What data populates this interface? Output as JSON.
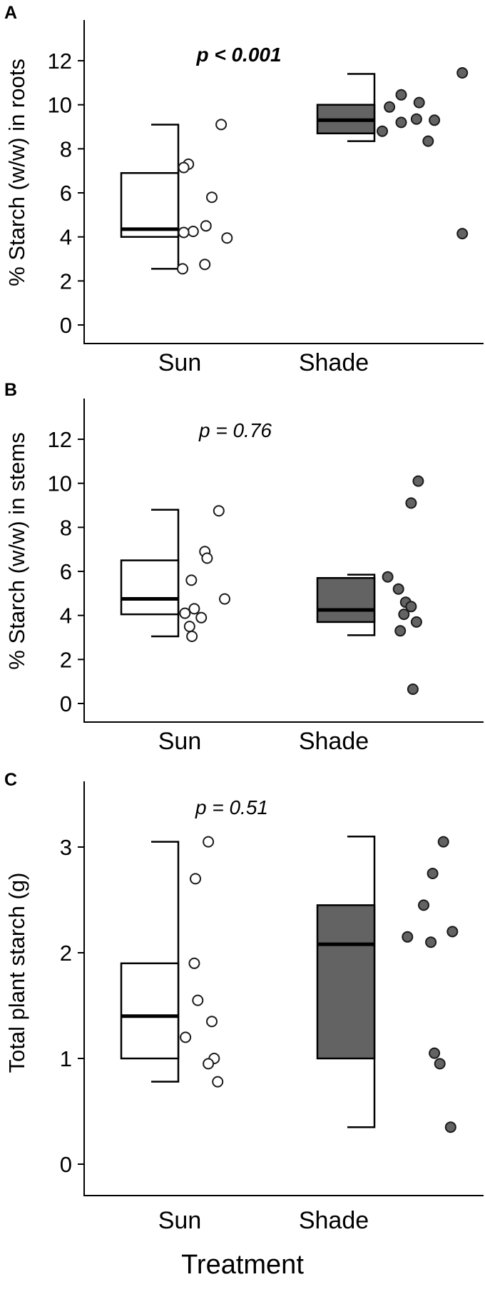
{
  "figure": {
    "xlabel": "Treatment",
    "colors": {
      "sun_fill": "#ffffff",
      "shade_fill": "#636363",
      "stroke": "#000000",
      "point_stroke": "#1a1a1a"
    }
  },
  "chart_data": [
    {
      "type": "boxplot",
      "panel_label": "A",
      "annotation": "p < 0.001",
      "annotation_weight": "bold",
      "ylabel": "% Starch (w/w) in roots",
      "xlabel": "",
      "categories": [
        "Sun",
        "Shade"
      ],
      "yticks": [
        0,
        2,
        4,
        6,
        8,
        10,
        12
      ],
      "ylim": [
        -0.8,
        13.9
      ],
      "legend": "none",
      "grid": false,
      "series": [
        {
          "name": "Sun",
          "style": "open",
          "box": {
            "whisker_low": 2.55,
            "q1": 4.0,
            "median": 4.35,
            "q3": 6.9,
            "whisker_high": 9.1
          },
          "points": [
            [
              9.1,
              0.66
            ],
            [
              7.3,
              0.1
            ],
            [
              7.15,
              0.02
            ],
            [
              5.8,
              0.5
            ],
            [
              4.5,
              0.4
            ],
            [
              4.25,
              0.18
            ],
            [
              4.2,
              0.02
            ],
            [
              3.95,
              0.76
            ],
            [
              2.75,
              0.38
            ],
            [
              2.55,
              0.0
            ]
          ]
        },
        {
          "name": "Shade",
          "style": "filled",
          "box": {
            "whisker_low": 8.35,
            "q1": 8.7,
            "median": 9.3,
            "q3": 10.0,
            "whisker_high": 11.4
          },
          "points": [
            [
              11.45,
              0.93
            ],
            [
              10.45,
              0.25
            ],
            [
              10.1,
              0.45
            ],
            [
              9.9,
              0.12
            ],
            [
              9.35,
              0.42
            ],
            [
              9.3,
              0.62
            ],
            [
              9.2,
              0.25
            ],
            [
              8.8,
              0.04
            ],
            [
              8.35,
              0.55
            ],
            [
              4.15,
              0.93
            ]
          ]
        }
      ]
    },
    {
      "type": "boxplot",
      "panel_label": "B",
      "annotation": "p = 0.76",
      "annotation_weight": "normal",
      "ylabel": "% Starch (w/w) in stems",
      "xlabel": "",
      "categories": [
        "Sun",
        "Shade"
      ],
      "yticks": [
        0,
        2,
        4,
        6,
        8,
        10,
        12
      ],
      "ylim": [
        -0.8,
        13.9
      ],
      "legend": "none",
      "grid": false,
      "series": [
        {
          "name": "Sun",
          "style": "open",
          "box": {
            "whisker_low": 3.05,
            "q1": 4.05,
            "median": 4.75,
            "q3": 6.5,
            "whisker_high": 8.8
          },
          "points": [
            [
              8.75,
              0.62
            ],
            [
              6.9,
              0.38
            ],
            [
              6.6,
              0.42
            ],
            [
              5.6,
              0.15
            ],
            [
              4.75,
              0.72
            ],
            [
              4.3,
              0.2
            ],
            [
              4.1,
              0.04
            ],
            [
              3.9,
              0.32
            ],
            [
              3.5,
              0.12
            ],
            [
              3.05,
              0.16
            ]
          ]
        },
        {
          "name": "Shade",
          "style": "filled",
          "box": {
            "whisker_low": 3.1,
            "q1": 3.7,
            "median": 4.25,
            "q3": 5.7,
            "whisker_high": 5.85
          },
          "points": [
            [
              10.1,
              0.44
            ],
            [
              9.1,
              0.36
            ],
            [
              5.75,
              0.1
            ],
            [
              5.2,
              0.22
            ],
            [
              4.6,
              0.3
            ],
            [
              4.4,
              0.36
            ],
            [
              4.05,
              0.28
            ],
            [
              3.7,
              0.42
            ],
            [
              3.3,
              0.24
            ],
            [
              0.65,
              0.38
            ]
          ]
        }
      ]
    },
    {
      "type": "boxplot",
      "panel_label": "C",
      "annotation": "p = 0.51",
      "annotation_weight": "normal",
      "ylabel": "Total plant starch (g)",
      "xlabel": "Treatment",
      "categories": [
        "Sun",
        "Shade"
      ],
      "yticks": [
        0,
        1,
        2,
        3
      ],
      "ylim": [
        -0.4,
        3.6
      ],
      "legend": "none",
      "grid": false,
      "series": [
        {
          "name": "Sun",
          "style": "open",
          "box": {
            "whisker_low": 0.78,
            "q1": 1.0,
            "median": 1.4,
            "q3": 1.9,
            "whisker_high": 3.05
          },
          "points": [
            [
              3.05,
              0.44
            ],
            [
              2.7,
              0.22
            ],
            [
              1.9,
              0.2
            ],
            [
              1.55,
              0.26
            ],
            [
              1.35,
              0.5
            ],
            [
              1.2,
              0.05
            ],
            [
              1.0,
              0.54
            ],
            [
              0.95,
              0.44
            ],
            [
              0.78,
              0.6
            ]
          ]
        },
        {
          "name": "Shade",
          "style": "filled",
          "box": {
            "whisker_low": 0.35,
            "q1": 1.0,
            "median": 2.08,
            "q3": 2.45,
            "whisker_high": 3.1
          },
          "points": [
            [
              3.05,
              0.72
            ],
            [
              2.75,
              0.6
            ],
            [
              2.45,
              0.5
            ],
            [
              2.2,
              0.82
            ],
            [
              2.15,
              0.32
            ],
            [
              2.1,
              0.58
            ],
            [
              1.05,
              0.62
            ],
            [
              0.95,
              0.68
            ],
            [
              0.35,
              0.8
            ]
          ]
        }
      ]
    }
  ]
}
